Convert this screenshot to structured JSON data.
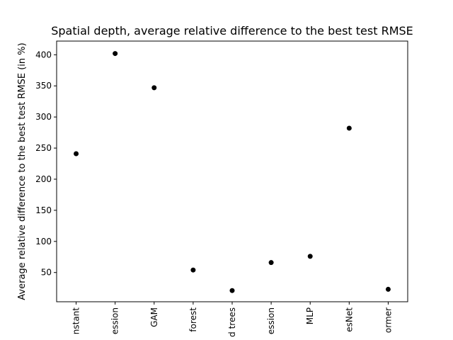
{
  "chart_data": {
    "type": "scatter",
    "title": "Spatial depth, average relative difference to the best test RMSE",
    "xlabel": "",
    "ylabel": "Average relative difference to the best test RMSE (in %)",
    "categories": [
      "nstant",
      "ession",
      "GAM",
      "forest",
      "d trees",
      "ession",
      "MLP",
      "esNet",
      "ormer"
    ],
    "values": [
      241,
      402,
      347,
      54,
      21,
      66,
      76,
      282,
      23
    ],
    "ylim": [
      3,
      422
    ],
    "yticks": [
      50,
      100,
      150,
      200,
      250,
      300,
      350,
      400
    ],
    "marker_color": "#000000",
    "grid": false,
    "legend": "none"
  }
}
